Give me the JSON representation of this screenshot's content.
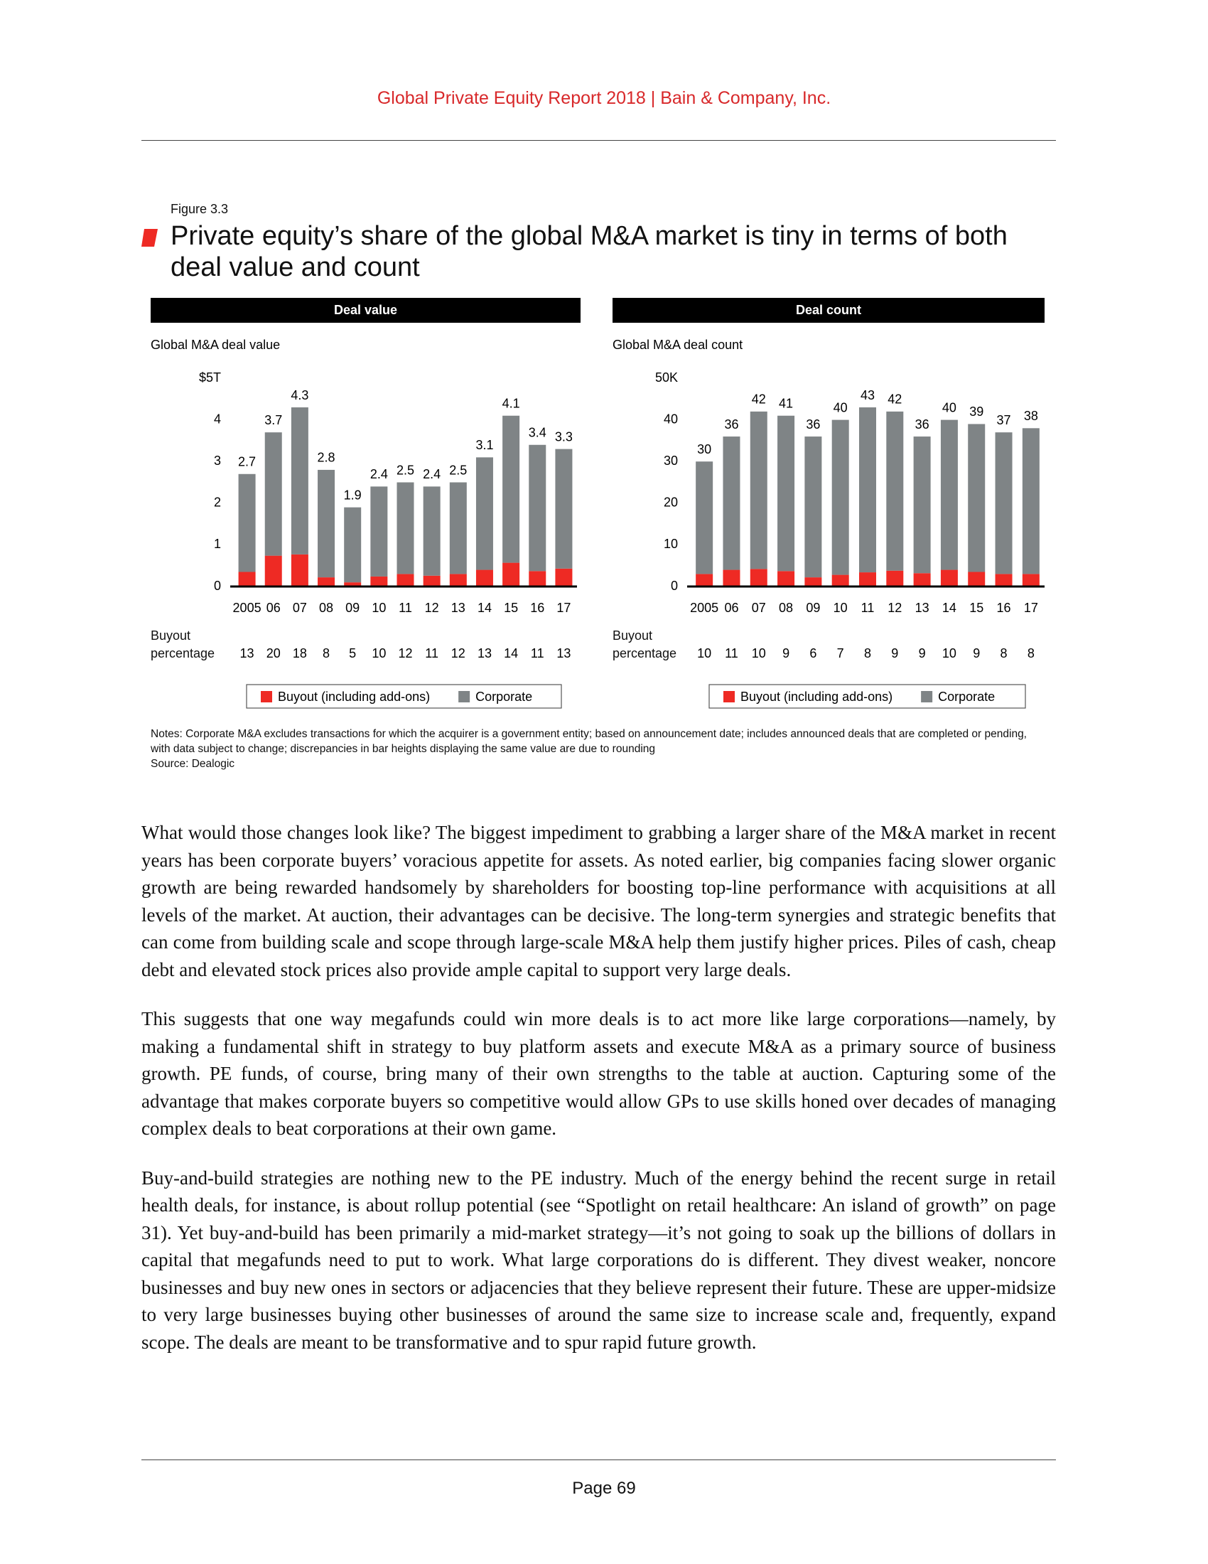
{
  "header": "Global Private Equity Report 2018 |  Bain & Company, Inc.",
  "figure_label": "Figure 3.3",
  "figure_title": "Private equity’s share of the global M&A market is tiny in terms of both deal value and count",
  "chart_data": [
    {
      "type": "bar",
      "stacked": true,
      "title": "Deal value",
      "y_label": "Global M&A deal value",
      "categories": [
        "2005",
        "06",
        "07",
        "08",
        "09",
        "10",
        "11",
        "12",
        "13",
        "14",
        "15",
        "16",
        "17"
      ],
      "series": [
        {
          "name": "Buyout (including add-ons)",
          "color": "#ee2a24",
          "values": [
            0.35,
            0.74,
            0.77,
            0.22,
            0.1,
            0.24,
            0.3,
            0.26,
            0.3,
            0.4,
            0.57,
            0.37,
            0.43
          ]
        },
        {
          "name": "Corporate",
          "color": "#7f8486",
          "values": [
            2.35,
            2.96,
            3.53,
            2.58,
            1.8,
            2.16,
            2.2,
            2.14,
            2.2,
            2.7,
            3.53,
            3.03,
            2.87
          ]
        }
      ],
      "totals": [
        2.7,
        3.7,
        4.3,
        2.8,
        1.9,
        2.4,
        2.5,
        2.4,
        2.5,
        3.1,
        4.1,
        3.4,
        3.3
      ],
      "row_label": "Buyout percentage",
      "buyout_percentage": [
        13,
        20,
        18,
        8,
        5,
        10,
        12,
        11,
        12,
        13,
        14,
        11,
        13
      ],
      "ylim": [
        0,
        5
      ],
      "yticks": [
        0,
        1,
        2,
        3,
        4,
        {
          "value": 5,
          "label": "$5T"
        }
      ]
    },
    {
      "type": "bar",
      "stacked": true,
      "title": "Deal count",
      "y_label": "Global M&A deal count",
      "categories": [
        "2005",
        "06",
        "07",
        "08",
        "09",
        "10",
        "11",
        "12",
        "13",
        "14",
        "15",
        "16",
        "17"
      ],
      "series": [
        {
          "name": "Buyout (including add-ons)",
          "color": "#ee2a24",
          "values": [
            3,
            4,
            4.2,
            3.7,
            2.2,
            2.8,
            3.4,
            3.8,
            3.2,
            4,
            3.5,
            3,
            3
          ]
        },
        {
          "name": "Corporate",
          "color": "#7f8486",
          "values": [
            27,
            32,
            37.8,
            37.3,
            33.8,
            37.2,
            39.6,
            38.2,
            32.8,
            36,
            35.5,
            34,
            35
          ]
        }
      ],
      "totals": [
        30,
        36,
        42,
        41,
        36,
        40,
        43,
        42,
        36,
        40,
        39,
        37,
        38
      ],
      "row_label": "Buyout percentage",
      "buyout_percentage": [
        10,
        11,
        10,
        9,
        6,
        7,
        8,
        9,
        9,
        10,
        9,
        8,
        8
      ],
      "ylim": [
        0,
        50
      ],
      "yticks": [
        0,
        10,
        20,
        30,
        40,
        {
          "value": 50,
          "label": "50K"
        }
      ]
    }
  ],
  "notes": "Notes: Corporate M&A excludes transactions for which the acquirer is a government entity; based on announcement date; includes announced deals that are completed or pending, with data subject to change; discrepancies in bar heights displaying the same value are due to rounding",
  "source": "Source: Dealogic",
  "body": [
    "What would those changes look like? The biggest impediment to grabbing a larger share of the M&A market in recent years has been corporate buyers’ voracious appetite for assets. As noted earlier, big companies facing slower organic growth are being rewarded handsomely by shareholders for boosting top-line performance with acquisitions at all levels of the market. At auction, their advantages can be decisive. The long-term synergies and strategic benefits that can come from building scale and scope through large-scale M&A help them justify higher prices. Piles of cash, cheap debt and elevated stock prices also provide ample capital to support very large deals.",
    "This suggests that one way megafunds could win more deals is to act more like large corporations—namely, by making a fundamental shift in strategy to buy platform assets and execute M&A as a primary source of business growth. PE funds, of course, bring many of their own strengths to the table at auction. Capturing some of the advantage that makes corporate buyers so competitive would allow GPs to use skills honed over decades of managing complex deals to beat corporations at their own game.",
    "Buy-and-build strategies are nothing new to the PE industry. Much of the energy behind the recent surge in retail health deals, for instance, is about rollup potential (see “Spotlight on retail healthcare: An island of growth” on page 31). Yet buy-and-build has been primarily a mid-market strategy—it’s not going to soak up the billions of dollars in capital that megafunds need to put to work. What large corporations do is different. They divest weaker, noncore businesses and buy new ones in sectors or adjacencies that they believe represent their future. These are upper-midsize to very large businesses buying other businesses of around the same size to increase scale and, frequently, expand scope. The deals are meant to be transformative and to spur rapid future growth."
  ],
  "page_number": "Page 69"
}
